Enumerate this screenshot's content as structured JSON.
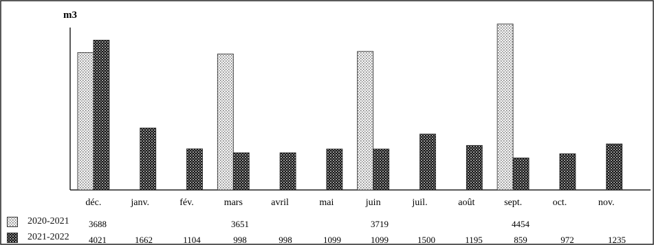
{
  "chart_data": {
    "type": "bar",
    "title": "",
    "ylabel": "m3",
    "xlabel": "",
    "ylim": [
      0,
      4600
    ],
    "grid": false,
    "categories": [
      "déc.",
      "janv.",
      "fév.",
      "mars",
      "avril",
      "mai",
      "juin",
      "juil.",
      "août",
      "sept.",
      "oct.",
      "nov."
    ],
    "series": [
      {
        "name": "2020-2021",
        "pattern": "light-dotted",
        "color": "#e2e2e2",
        "values": [
          3688,
          null,
          null,
          3651,
          null,
          null,
          3719,
          null,
          null,
          4454,
          null,
          null
        ],
        "table_values": [
          "3688",
          "",
          "",
          "3651",
          "",
          "",
          "3719",
          "",
          "",
          "4454",
          "",
          ""
        ]
      },
      {
        "name": "2021-2022",
        "pattern": "dark-checkered",
        "color": "#2a2a2a",
        "values": [
          4021,
          1662,
          1104,
          998,
          998,
          1099,
          1099,
          1500,
          1195,
          859,
          972,
          1235
        ],
        "table_values": [
          "4021",
          "1662",
          "1104",
          "998",
          "998",
          "1099",
          "1099",
          "1500",
          "1195",
          "859",
          "972",
          "1235"
        ]
      }
    ],
    "legend_placement": "bottom-left data table"
  }
}
